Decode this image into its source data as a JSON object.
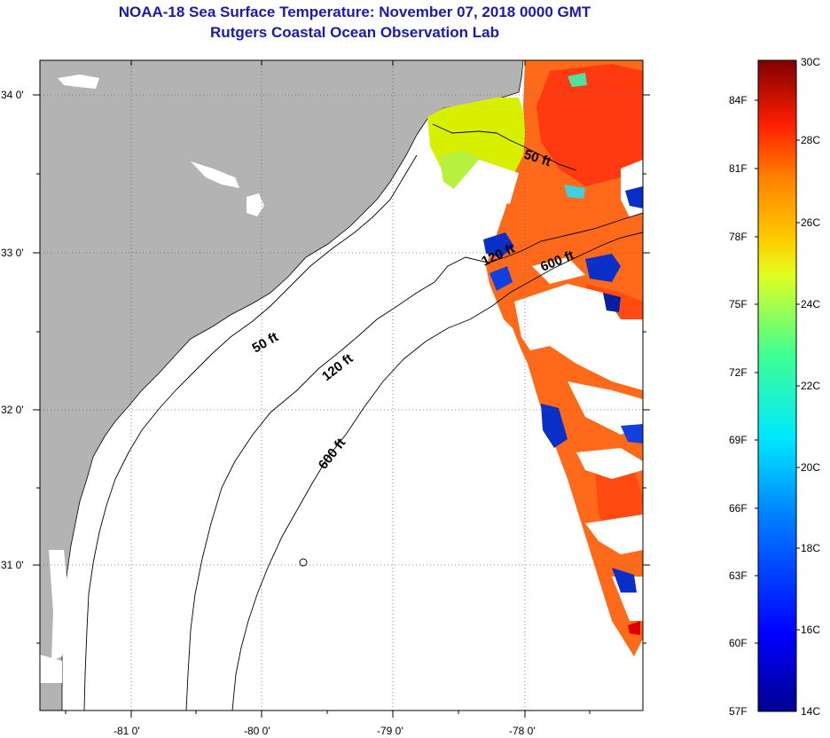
{
  "header": {
    "title": "NOAA-18 Sea Surface Temperature:  November 07, 2018 0000 GMT",
    "subtitle": "Rutgers Coastal Ocean Observation Lab"
  },
  "map": {
    "lon_labels": [
      "-81 0'",
      "-80 0'",
      "-79 0'",
      "-78 0'"
    ],
    "lat_labels": [
      "34 0'",
      "33 0'",
      "32 0'",
      "31 0'"
    ],
    "contour_labels": {
      "c50_north": "50 ft",
      "c120_north": "120 ft",
      "c600_north": "600 ft",
      "c50_south": "50 ft",
      "c120_south": "120 ft",
      "c600_south": "600 ft"
    },
    "colors": {
      "land": "#b3b3b3",
      "ocean": "#ffffff",
      "warm": "#ff6a1a",
      "cold": "#0a2fc8"
    }
  },
  "colorbar": {
    "fahrenheit_labels": [
      "84F",
      "81F",
      "78F",
      "75F",
      "72F",
      "69F",
      "66F",
      "63F",
      "60F",
      "57F"
    ],
    "celsius_labels": [
      "30C",
      "28C",
      "26C",
      "24C",
      "22C",
      "20C",
      "18C",
      "16C",
      "14C"
    ]
  }
}
